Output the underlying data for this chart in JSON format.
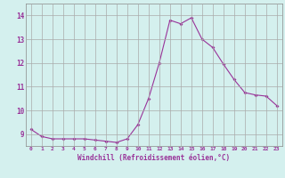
{
  "hours": [
    0,
    1,
    2,
    3,
    4,
    5,
    6,
    7,
    8,
    9,
    10,
    11,
    12,
    13,
    14,
    15,
    16,
    17,
    18,
    19,
    20,
    21,
    22,
    23
  ],
  "values": [
    9.2,
    8.9,
    8.8,
    8.8,
    8.8,
    8.8,
    8.75,
    8.7,
    8.65,
    8.8,
    9.4,
    10.5,
    12.0,
    13.8,
    13.65,
    13.9,
    13.0,
    12.65,
    11.95,
    11.3,
    10.75,
    10.65,
    10.6,
    10.2
  ],
  "line_color": "#993399",
  "marker": "D",
  "marker_size": 2,
  "bg_color": "#d4f0ee",
  "grid_color": "#aaaaaa",
  "label_color": "#993399",
  "xlabel": "Windchill (Refroidissement éolien,°C)",
  "ylim": [
    8.5,
    14.5
  ],
  "yticks": [
    9,
    10,
    11,
    12,
    13,
    14
  ],
  "xticks": [
    0,
    1,
    2,
    3,
    4,
    5,
    6,
    7,
    8,
    9,
    10,
    11,
    12,
    13,
    14,
    15,
    16,
    17,
    18,
    19,
    20,
    21,
    22,
    23
  ]
}
